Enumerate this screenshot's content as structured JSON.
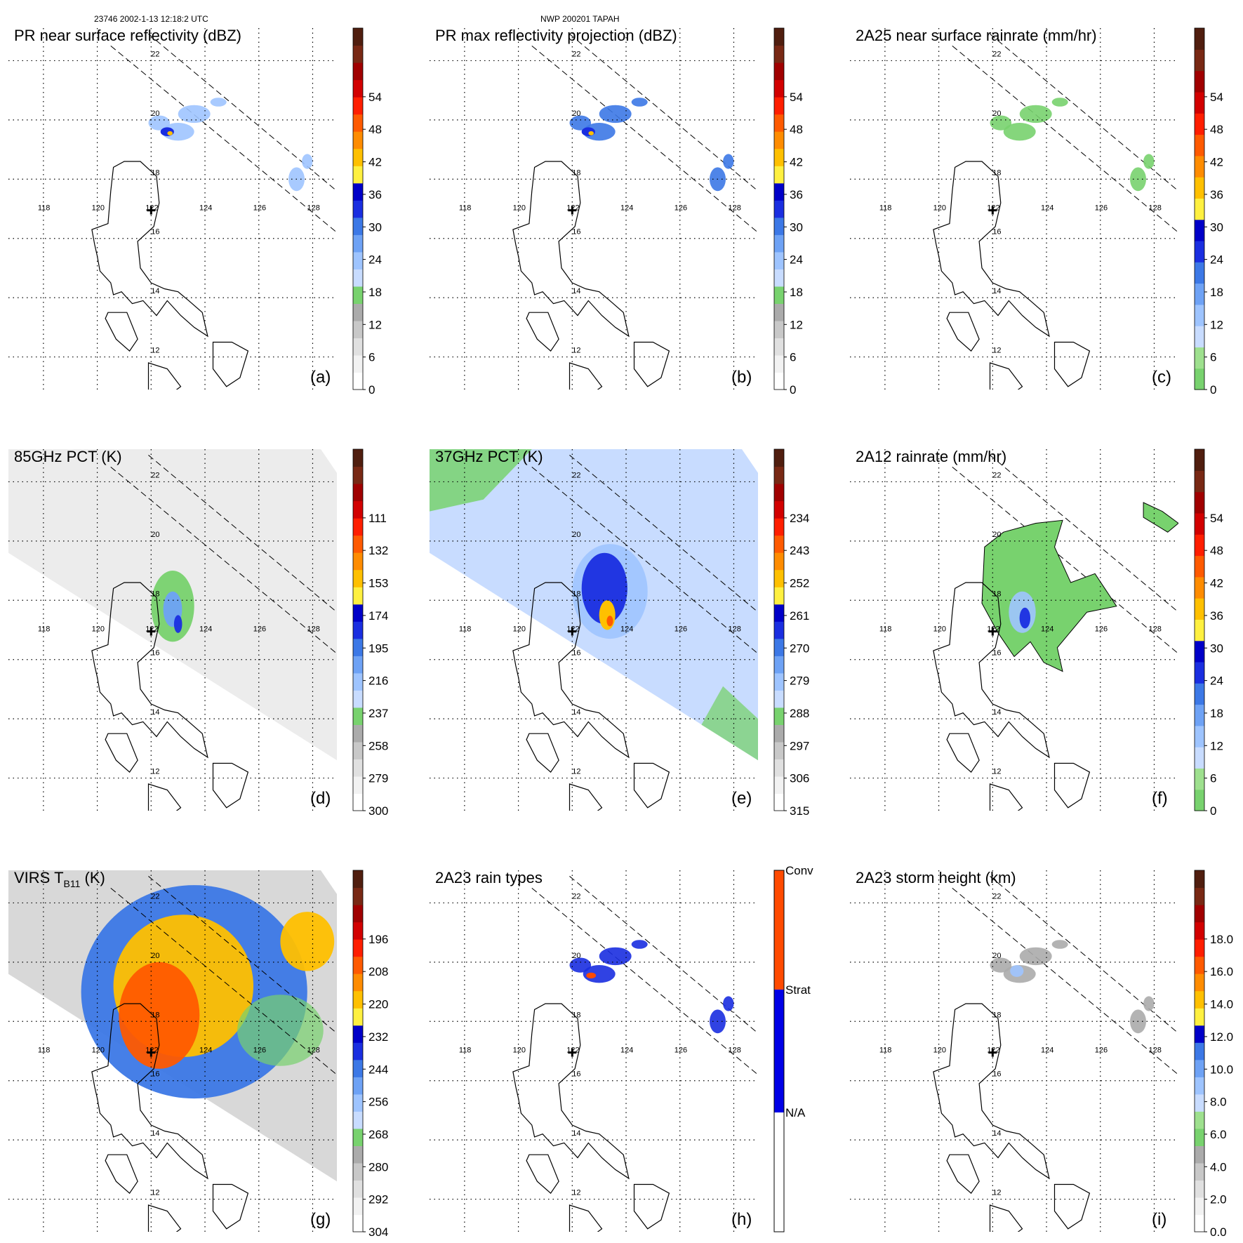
{
  "header": {
    "orbit_time": "23746 2002-1-13 12:18:2 UTC",
    "storm": "NWP 200201 TAPAH"
  },
  "chart_data": [
    {
      "id": "a",
      "type": "heatmap",
      "title": "PR near surface reflectivity (dBZ)",
      "letter": "(a)",
      "colorbar": {
        "ticks": [
          "0",
          "6",
          "12",
          "18",
          "24",
          "30",
          "36",
          "42",
          "48",
          "54"
        ],
        "colors": [
          "#ffffff",
          "#f2f2f2",
          "#e0e0e0",
          "#c8c8c8",
          "#ababab",
          "#78d26e",
          "#c8dcff",
          "#9ec4ff",
          "#6ea2f5",
          "#3c78e6",
          "#1a2ee0",
          "#0000c8",
          "#fff040",
          "#ffc000",
          "#ff8c00",
          "#ff5a00",
          "#ff1e00",
          "#d20000",
          "#a00000",
          "#782814",
          "#501e0f"
        ]
      },
      "lat_labels": [
        "12",
        "14",
        "16",
        "18",
        "20",
        "22"
      ],
      "lon_labels": [
        "118",
        "120",
        "122",
        "124",
        "126",
        "128"
      ]
    },
    {
      "id": "b",
      "type": "heatmap",
      "title": "PR max reflectivity projection (dBZ)",
      "letter": "(b)",
      "colorbar": {
        "ticks": [
          "0",
          "6",
          "12",
          "18",
          "24",
          "30",
          "36",
          "42",
          "48",
          "54"
        ],
        "colors": [
          "#ffffff",
          "#f2f2f2",
          "#e0e0e0",
          "#c8c8c8",
          "#ababab",
          "#78d26e",
          "#c8dcff",
          "#9ec4ff",
          "#6ea2f5",
          "#3c78e6",
          "#1a2ee0",
          "#0000c8",
          "#fff040",
          "#ffc000",
          "#ff8c00",
          "#ff5a00",
          "#ff1e00",
          "#d20000",
          "#a00000",
          "#782814",
          "#501e0f"
        ]
      },
      "lat_labels": [
        "12",
        "14",
        "16",
        "18",
        "20",
        "22"
      ],
      "lon_labels": [
        "118",
        "120",
        "122",
        "124",
        "126",
        "128"
      ]
    },
    {
      "id": "c",
      "type": "heatmap",
      "title": "2A25 near surface rainrate (mm/hr)",
      "letter": "(c)",
      "colorbar": {
        "ticks": [
          "0",
          "6",
          "12",
          "18",
          "24",
          "30",
          "36",
          "42",
          "48",
          "54"
        ],
        "colors": [
          "#78d26e",
          "#9ee08e",
          "#c8dcff",
          "#9ec4ff",
          "#6ea2f5",
          "#3c78e6",
          "#1a2ee0",
          "#0000c8",
          "#fff040",
          "#ffc000",
          "#ff8c00",
          "#ff5a00",
          "#ff1e00",
          "#d20000",
          "#a00000",
          "#782814",
          "#501e0f"
        ]
      },
      "lat_labels": [
        "12",
        "14",
        "16",
        "18",
        "20",
        "22"
      ],
      "lon_labels": [
        "118",
        "120",
        "122",
        "124",
        "126",
        "128"
      ]
    },
    {
      "id": "d",
      "type": "heatmap",
      "title": "85GHz PCT (K)",
      "letter": "(d)",
      "colorbar": {
        "ticks": [
          "300",
          "279",
          "258",
          "237",
          "216",
          "195",
          "174",
          "153",
          "132",
          "111"
        ],
        "colors": [
          "#ffffff",
          "#f2f2f2",
          "#e0e0e0",
          "#c8c8c8",
          "#ababab",
          "#78d26e",
          "#c8dcff",
          "#9ec4ff",
          "#6ea2f5",
          "#3c78e6",
          "#1a2ee0",
          "#0000c8",
          "#fff040",
          "#ffc000",
          "#ff8c00",
          "#ff5a00",
          "#ff1e00",
          "#d20000",
          "#a00000",
          "#782814",
          "#501e0f"
        ]
      },
      "lat_labels": [
        "12",
        "14",
        "16",
        "18",
        "20",
        "22"
      ],
      "lon_labels": [
        "118",
        "120",
        "122",
        "124",
        "126",
        "128"
      ]
    },
    {
      "id": "e",
      "type": "heatmap",
      "title": "37GHz PCT (K)",
      "letter": "(e)",
      "colorbar": {
        "ticks": [
          "315",
          "306",
          "297",
          "288",
          "279",
          "270",
          "261",
          "252",
          "243",
          "234"
        ],
        "colors": [
          "#ffffff",
          "#f2f2f2",
          "#e0e0e0",
          "#c8c8c8",
          "#ababab",
          "#78d26e",
          "#c8dcff",
          "#9ec4ff",
          "#6ea2f5",
          "#3c78e6",
          "#1a2ee0",
          "#0000c8",
          "#fff040",
          "#ffc000",
          "#ff8c00",
          "#ff5a00",
          "#ff1e00",
          "#d20000",
          "#a00000",
          "#782814",
          "#501e0f"
        ]
      },
      "lat_labels": [
        "12",
        "14",
        "16",
        "18",
        "20",
        "22"
      ],
      "lon_labels": [
        "118",
        "120",
        "122",
        "124",
        "126",
        "128"
      ]
    },
    {
      "id": "f",
      "type": "heatmap",
      "title": "2A12 rainrate (mm/hr)",
      "letter": "(f)",
      "colorbar": {
        "ticks": [
          "0",
          "6",
          "12",
          "18",
          "24",
          "30",
          "36",
          "42",
          "48",
          "54"
        ],
        "colors": [
          "#78d26e",
          "#9ee08e",
          "#c8dcff",
          "#9ec4ff",
          "#6ea2f5",
          "#3c78e6",
          "#1a2ee0",
          "#0000c8",
          "#fff040",
          "#ffc000",
          "#ff8c00",
          "#ff5a00",
          "#ff1e00",
          "#d20000",
          "#a00000",
          "#782814",
          "#501e0f"
        ]
      },
      "lat_labels": [
        "12",
        "14",
        "16",
        "18",
        "20",
        "22"
      ],
      "lon_labels": [
        "118",
        "120",
        "122",
        "124",
        "126",
        "128"
      ]
    },
    {
      "id": "g",
      "type": "heatmap",
      "title": "VIRS T",
      "title_sub": "B11",
      "title_suffix": " (K)",
      "letter": "(g)",
      "colorbar": {
        "ticks": [
          "304",
          "292",
          "280",
          "268",
          "256",
          "244",
          "232",
          "220",
          "208",
          "196"
        ],
        "colors": [
          "#ffffff",
          "#f2f2f2",
          "#e0e0e0",
          "#c8c8c8",
          "#ababab",
          "#78d26e",
          "#c8dcff",
          "#9ec4ff",
          "#6ea2f5",
          "#3c78e6",
          "#1a2ee0",
          "#0000c8",
          "#fff040",
          "#ffc000",
          "#ff8c00",
          "#ff5a00",
          "#ff1e00",
          "#d20000",
          "#a00000",
          "#782814",
          "#501e0f"
        ]
      },
      "lat_labels": [
        "12",
        "14",
        "16",
        "18",
        "20",
        "22"
      ],
      "lon_labels": [
        "118",
        "120",
        "122",
        "124",
        "126",
        "128"
      ]
    },
    {
      "id": "h",
      "type": "heatmap",
      "title": "2A23 rain types",
      "letter": "(h)",
      "colorbar": {
        "categorical": true,
        "ticks": [
          "N/A",
          "Strat",
          "Conv"
        ],
        "colors": [
          "#ffffff",
          "#0000e6",
          "#ff4a00"
        ]
      },
      "lat_labels": [
        "12",
        "14",
        "16",
        "18",
        "20",
        "22"
      ],
      "lon_labels": [
        "118",
        "120",
        "122",
        "124",
        "126",
        "128"
      ]
    },
    {
      "id": "i",
      "type": "heatmap",
      "title": "2A23 storm height (km)",
      "letter": "(i)",
      "colorbar": {
        "ticks": [
          "0.0",
          "2.0",
          "4.0",
          "6.0",
          "8.0",
          "10.0",
          "12.0",
          "14.0",
          "16.0",
          "18.0"
        ],
        "colors": [
          "#ffffff",
          "#f2f2f2",
          "#e0e0e0",
          "#c8c8c8",
          "#ababab",
          "#78d26e",
          "#9ee08e",
          "#c8dcff",
          "#9ec4ff",
          "#6ea2f5",
          "#3c78e6",
          "#0000c8",
          "#fff040",
          "#ffc000",
          "#ff8c00",
          "#ff5a00",
          "#ff1e00",
          "#d20000",
          "#a00000",
          "#782814",
          "#501e0f"
        ]
      },
      "lat_labels": [
        "12",
        "14",
        "16",
        "18",
        "20",
        "22"
      ],
      "lon_labels": [
        "118",
        "120",
        "122",
        "124",
        "126",
        "128"
      ]
    }
  ]
}
